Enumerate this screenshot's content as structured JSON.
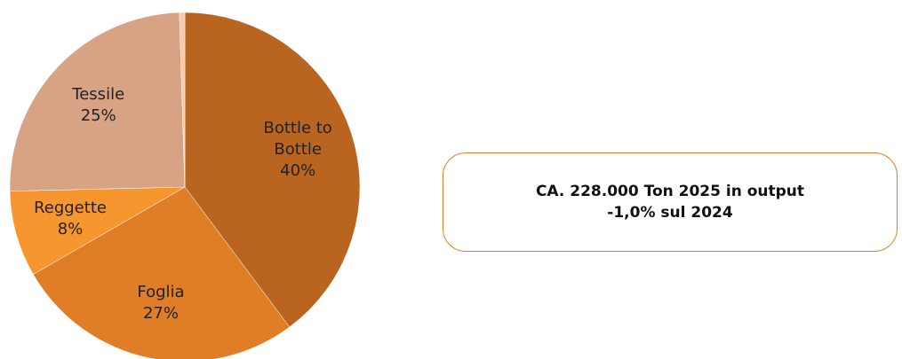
{
  "chart_data": {
    "type": "pie",
    "categories": [
      "Bottle to Bottle",
      "Foglia",
      "Reggette",
      "Tessile",
      null
    ],
    "values": [
      40,
      27,
      8,
      25,
      0.5
    ],
    "value_labels": [
      "40%",
      "27%",
      "8%",
      "25%",
      null
    ],
    "colors": [
      "#b9651f",
      "#e07d27",
      "#f7962f",
      "#d8a385",
      "#f8c9aa"
    ],
    "start_angle": 0,
    "annotations": [
      "CA. 228.000 Ton 2025 in output",
      "-1,0% sul 2024"
    ]
  }
}
